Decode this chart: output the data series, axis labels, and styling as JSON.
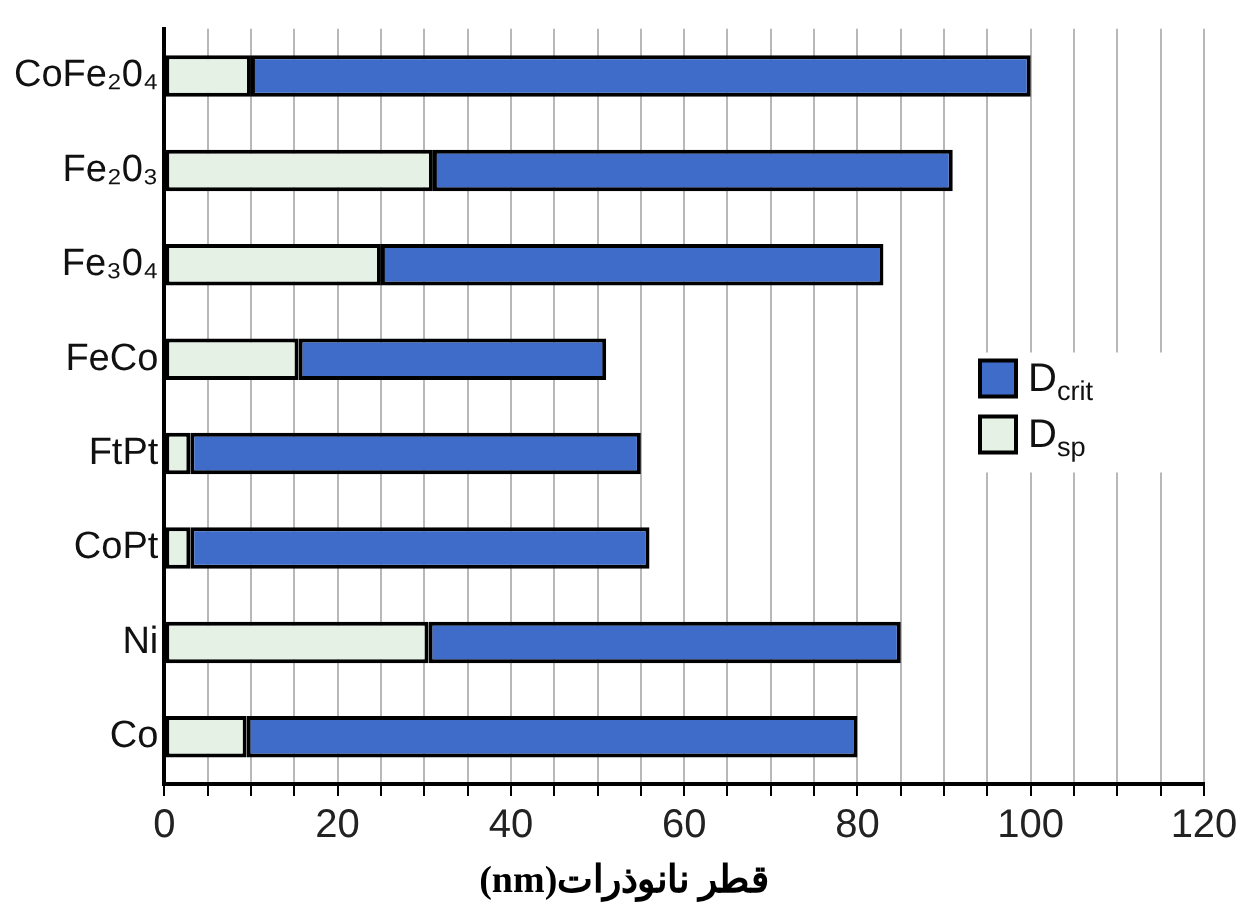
{
  "chart_data": {
    "type": "bar",
    "orientation": "horizontal",
    "stacked": true,
    "categories": [
      "CoFe₂0₄",
      "Fe₂0₃",
      "Fe₃0₄",
      "FeCo",
      "FtPt",
      "CoPt",
      "Ni",
      "Co"
    ],
    "series": [
      {
        "name": "D$_{sp}$",
        "color": "#e4f1e4",
        "values": [
          10,
          31,
          25,
          15.5,
          3,
          3,
          30.5,
          9.5
        ]
      },
      {
        "name": "D$_{crit}$",
        "color": "#3f6cc8",
        "values": [
          90,
          60,
          58,
          35.5,
          52,
          53,
          54.5,
          70.5
        ]
      }
    ],
    "xlabel": "قطر نانوذرات(nm)",
    "xlim": [
      0,
      120
    ],
    "xticks": [
      0,
      {
        "value": 5,
        "label": null
      },
      {
        "value": 10,
        "label": null
      },
      {
        "value": 15,
        "label": null
      },
      20,
      {
        "value": 25,
        "label": null
      },
      {
        "value": 30,
        "label": null
      },
      {
        "value": 35,
        "label": null
      },
      40,
      {
        "value": 45,
        "label": null
      },
      {
        "value": 50,
        "label": null
      },
      {
        "value": 55,
        "label": null
      },
      60,
      {
        "value": 65,
        "label": null
      },
      {
        "value": 70,
        "label": null
      },
      {
        "value": 75,
        "label": null
      },
      80,
      {
        "value": 85,
        "label": null
      },
      {
        "value": 90,
        "label": null
      },
      {
        "value": 95,
        "label": null
      },
      100,
      {
        "value": 105,
        "label": null
      },
      {
        "value": 110,
        "label": null
      },
      {
        "value": 115,
        "label": null
      },
      120
    ],
    "grid": "x",
    "legend": "right"
  }
}
